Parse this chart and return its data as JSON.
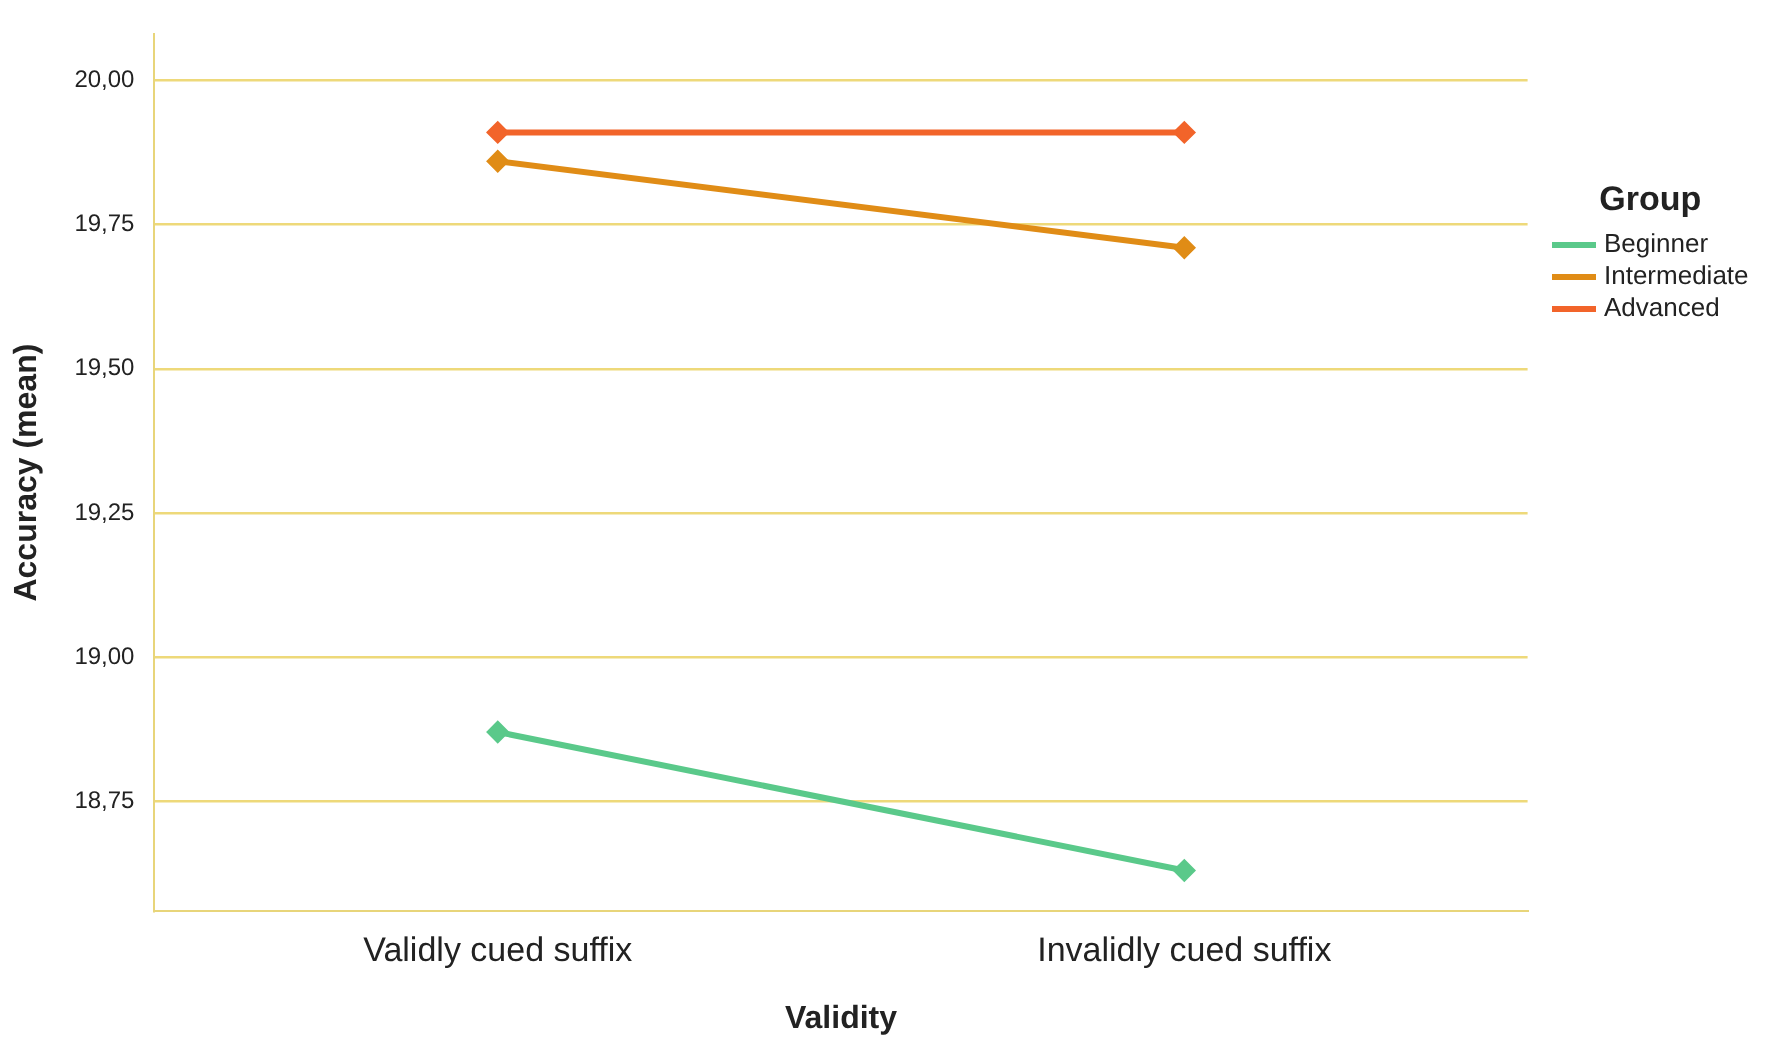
{
  "chart_data": {
    "type": "line",
    "xlabel": "Validity",
    "ylabel": "Accuracy (mean)",
    "legend_title": "Group",
    "legend": "right",
    "grid": "y",
    "marker": "diamond",
    "line_style": "solid",
    "categories": [
      "Validly cued suffix",
      "Invalidly cued suffix"
    ],
    "ylim": [
      18.56,
      20.08
    ],
    "yticks": [
      {
        "value": 18.75,
        "label": "18,75"
      },
      {
        "value": 19,
        "label": "19,00"
      },
      {
        "value": 19.25,
        "label": "19,25"
      },
      {
        "value": 19.5,
        "label": "19,50"
      },
      {
        "value": 19.75,
        "label": "19,75"
      },
      {
        "value": 20,
        "label": "20,00"
      }
    ],
    "series": [
      {
        "name": "Beginner",
        "color": "#5ac98a",
        "values": [
          18.87,
          18.63
        ]
      },
      {
        "name": "Intermediate",
        "color": "#e08c16",
        "values": [
          19.86,
          19.71
        ]
      },
      {
        "name": "Advanced",
        "color": "#f2642a",
        "values": [
          19.91,
          19.91
        ]
      }
    ]
  }
}
